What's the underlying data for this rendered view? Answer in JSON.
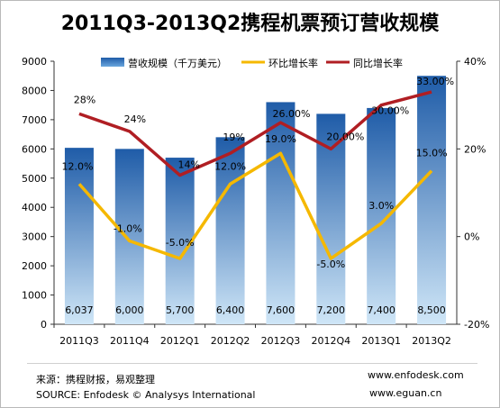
{
  "title": "2011Q3-2013Q2携程机票预订营收规模",
  "footer": {
    "source_cn": "来源：携程财报，易观整理",
    "source_en": "SOURCE: Enfodesk © Analysys International",
    "site1": "www.enfodesk.com",
    "site2": "www.eguan.cn"
  },
  "colors": {
    "bar_top": "#1f5ca8",
    "bar_bottom": "#cfe6f7",
    "qoq_line": "#f5b800",
    "yoy_line": "#b01e23"
  },
  "chart_data": {
    "type": "bar+line",
    "categories": [
      "2011Q3",
      "2011Q4",
      "2012Q1",
      "2012Q2",
      "2012Q3",
      "2012Q4",
      "2013Q1",
      "2013Q2"
    ],
    "series": [
      {
        "name": "营收规模（千万美元）",
        "axis": "left",
        "values": [
          6037,
          6000,
          5700,
          6400,
          7600,
          7200,
          7400,
          8500
        ],
        "labels": [
          "6,037",
          "6,000",
          "5,700",
          "6,400",
          "7,600",
          "7,200",
          "7,400",
          "8,500"
        ]
      },
      {
        "name": "环比增长率",
        "axis": "right",
        "values": [
          12.0,
          -1.0,
          -5.0,
          12.0,
          19.0,
          -5.0,
          3.0,
          15.0
        ],
        "labels": [
          "12.0%",
          "-1.0%",
          "-5.0%",
          "12.0%",
          "19.0%",
          "-5.0%",
          "3.0%",
          "15.0%"
        ]
      },
      {
        "name": "同比增长率",
        "axis": "right",
        "values": [
          28,
          24,
          14,
          19,
          26,
          20,
          30,
          33
        ],
        "labels": [
          "28%",
          "24%",
          "14%",
          "19%",
          "26.00%",
          "20.00%",
          "30.00%",
          "33.00%"
        ]
      }
    ],
    "yleft": {
      "min": 0,
      "max": 9000,
      "ticks": [
        "0",
        "1000",
        "2000",
        "3000",
        "4000",
        "5000",
        "6000",
        "7000",
        "8000",
        "9000"
      ]
    },
    "yright": {
      "min": -20,
      "max": 40,
      "ticks": [
        "-20%",
        "0%",
        "20%",
        "40%"
      ],
      "tick_values": [
        -20,
        0,
        20,
        40
      ]
    },
    "legend_position": "top"
  }
}
